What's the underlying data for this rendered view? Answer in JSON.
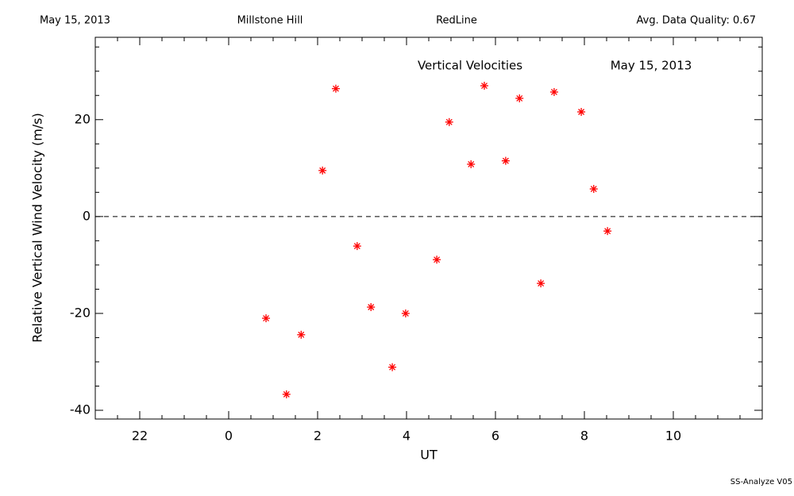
{
  "chart_data": {
    "type": "scatter",
    "header": [
      "May 15, 2013",
      "Millstone Hill",
      "RedLine",
      "Avg. Data Quality: 0.67"
    ],
    "title": "Vertical Velocities",
    "date_label": "May 15, 2013",
    "xlabel": "UT",
    "ylabel": "Relative Vertical Wind Velocity (m/s)",
    "footer": "SS-Analyze V05",
    "x": [
      0.84,
      1.3,
      1.63,
      2.11,
      2.41,
      2.89,
      3.2,
      3.68,
      3.98,
      4.68,
      4.96,
      5.45,
      5.75,
      6.23,
      6.54,
      7.02,
      7.32,
      7.93,
      8.21,
      8.52
    ],
    "series": [
      {
        "color": "#ff0000",
        "values": [
          -21.0,
          -36.7,
          -24.4,
          9.5,
          26.4,
          -6.1,
          -18.7,
          -31.1,
          -20.0,
          -8.9,
          19.5,
          10.8,
          27.0,
          11.5,
          24.4,
          -13.8,
          25.7,
          21.6,
          5.7,
          -3.0
        ]
      }
    ],
    "xlim": [
      -3,
      12
    ],
    "ylim": [
      -41.8,
      37
    ],
    "xticks": [
      {
        "value": -2,
        "label": "22"
      },
      0,
      2,
      4,
      6,
      8,
      10
    ],
    "yticks": [
      -40,
      -20,
      0,
      20
    ],
    "minor_xticks": [
      -2.5,
      -1.5,
      -1,
      -0.5,
      0.5,
      1,
      1.5,
      2.5,
      3,
      3.5,
      4.5,
      5,
      5.5,
      6.5,
      7,
      7.5,
      8.5,
      9,
      9.5,
      10.5,
      11,
      11.5
    ],
    "minor_yticks": [
      -35,
      -30,
      -25,
      -15,
      -10,
      -5,
      5,
      10,
      15,
      25,
      30,
      35
    ],
    "reference_line": 0
  }
}
